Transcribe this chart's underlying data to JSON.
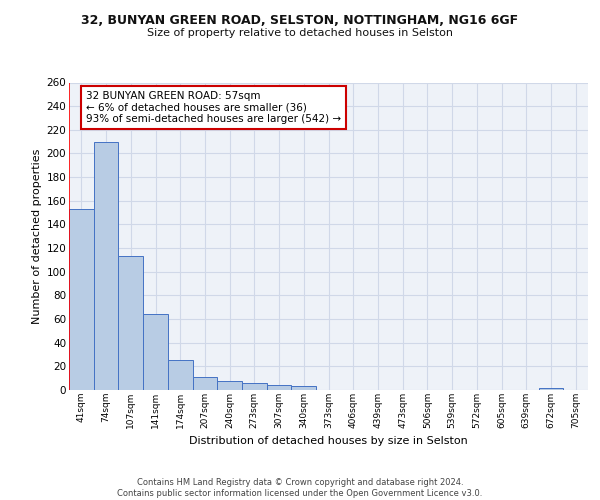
{
  "title_line1": "32, BUNYAN GREEN ROAD, SELSTON, NOTTINGHAM, NG16 6GF",
  "title_line2": "Size of property relative to detached houses in Selston",
  "xlabel": "Distribution of detached houses by size in Selston",
  "ylabel": "Number of detached properties",
  "bin_labels": [
    "41sqm",
    "74sqm",
    "107sqm",
    "141sqm",
    "174sqm",
    "207sqm",
    "240sqm",
    "273sqm",
    "307sqm",
    "340sqm",
    "373sqm",
    "406sqm",
    "439sqm",
    "473sqm",
    "506sqm",
    "539sqm",
    "572sqm",
    "605sqm",
    "639sqm",
    "672sqm",
    "705sqm"
  ],
  "bar_heights": [
    153,
    210,
    113,
    64,
    25,
    11,
    8,
    6,
    4,
    3,
    0,
    0,
    0,
    0,
    0,
    0,
    0,
    0,
    0,
    2,
    0
  ],
  "bar_color": "#b8cce4",
  "bar_edge_color": "#4472c4",
  "grid_color": "#d0d8e8",
  "background_color": "#eef2f8",
  "annotation_text": "32 BUNYAN GREEN ROAD: 57sqm\n← 6% of detached houses are smaller (36)\n93% of semi-detached houses are larger (542) →",
  "annotation_box_color": "#ffffff",
  "annotation_box_edge": "#cc0000",
  "footer_text": "Contains HM Land Registry data © Crown copyright and database right 2024.\nContains public sector information licensed under the Open Government Licence v3.0.",
  "ylim": [
    0,
    260
  ],
  "yticks": [
    0,
    20,
    40,
    60,
    80,
    100,
    120,
    140,
    160,
    180,
    200,
    220,
    240,
    260
  ]
}
